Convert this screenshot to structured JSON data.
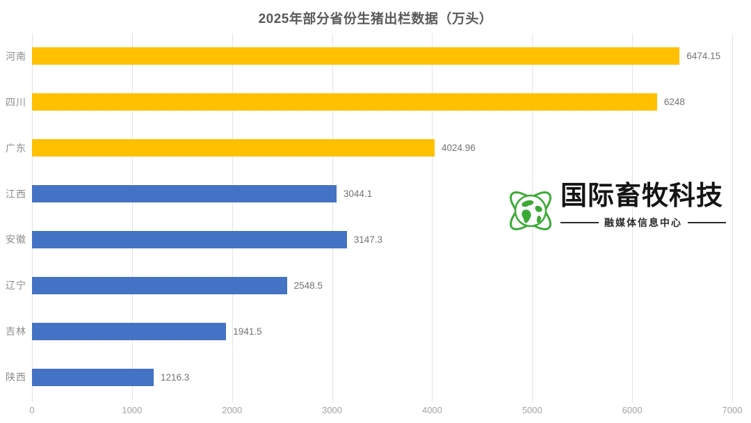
{
  "title": "2025年部分省份生猪出栏数据（万头）",
  "chart_data": {
    "type": "bar",
    "orientation": "horizontal",
    "title": "2025年部分省份生猪出栏数据（万头）",
    "categories": [
      "河南",
      "四川",
      "广东",
      "江西",
      "安徽",
      "辽宁",
      "吉林",
      "陕西"
    ],
    "values": [
      6474.15,
      6248,
      4024.96,
      3044.1,
      3147.3,
      2548.5,
      1941.5,
      1216.3
    ],
    "value_labels": [
      "6474.15",
      "6248",
      "4024.96",
      "3044.1",
      "3147.3",
      "2548.5",
      "1941.5",
      "1216.3"
    ],
    "bar_colors": [
      "#FFC000",
      "#FFC000",
      "#FFC000",
      "#4472C4",
      "#4472C4",
      "#4472C4",
      "#4472C4",
      "#4472C4"
    ],
    "xlim": [
      0,
      7000
    ],
    "x_ticks": [
      0,
      1000,
      2000,
      3000,
      4000,
      5000,
      6000,
      7000
    ],
    "x_tick_labels": [
      "0",
      "1000",
      "2000",
      "3000",
      "4000",
      "5000",
      "6000",
      "7000"
    ],
    "grid": "vertical-gridlines-on",
    "legend": "none",
    "colors": {
      "yellow": "#FFC000",
      "blue": "#4472C4",
      "gridline": "#E3E3E3",
      "title_text": "#595959",
      "label_text": "#8C8C8C",
      "value_text": "#737373",
      "tick_text": "#A3A3A3"
    }
  },
  "watermark": {
    "brand": "国际畜牧科技",
    "subtitle": "融媒体信息中心",
    "icon": "globe-orbit-icon",
    "icon_color": "#3BAA35"
  }
}
